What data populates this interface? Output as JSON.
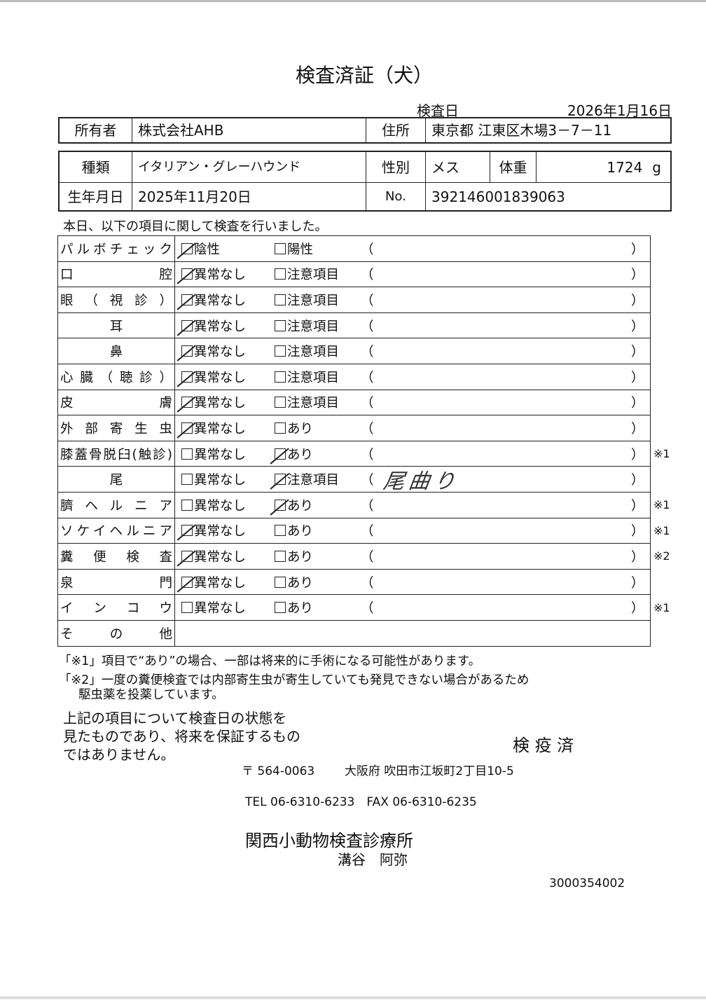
{
  "title": "検査済証（犬）",
  "inspection_date": {
    "label": "検査日",
    "value": "2026年1月16日"
  },
  "owner": {
    "label": "所有者",
    "value": "株式会社AHB"
  },
  "address": {
    "label": "住所",
    "value": "東京都 江東区木場3－7－11"
  },
  "breed": {
    "label": "種類",
    "value": "イタリアン・グレーハウンド"
  },
  "sex": {
    "label": "性別",
    "value": "メス"
  },
  "weight": {
    "label": "体重",
    "value": "1724",
    "unit": "g"
  },
  "birthdate": {
    "label": "生年月日",
    "value": "2025年11月20日"
  },
  "number": {
    "label": "No.",
    "value": "392146001839063"
  },
  "intro": "本日、以下の項目に関して検査を行いました。",
  "checklist": [
    {
      "label": "パルボチェック",
      "opt1": "陰性",
      "opt2": "陽性",
      "checked": 1,
      "note": "",
      "remark": ""
    },
    {
      "label": "口腔",
      "opt1": "異常なし",
      "opt2": "注意項目",
      "checked": 1,
      "note": "",
      "remark": ""
    },
    {
      "label": "眼（視診）",
      "opt1": "異常なし",
      "opt2": "注意項目",
      "checked": 1,
      "note": "",
      "remark": ""
    },
    {
      "label": "耳",
      "opt1": "異常なし",
      "opt2": "注意項目",
      "checked": 1,
      "note": "",
      "remark": ""
    },
    {
      "label": "鼻",
      "opt1": "異常なし",
      "opt2": "注意項目",
      "checked": 1,
      "note": "",
      "remark": ""
    },
    {
      "label": "心臓（聴診）",
      "opt1": "異常なし",
      "opt2": "注意項目",
      "checked": 1,
      "note": "",
      "remark": ""
    },
    {
      "label": "皮膚",
      "opt1": "異常なし",
      "opt2": "注意項目",
      "checked": 1,
      "note": "",
      "remark": ""
    },
    {
      "label": "外部寄生虫",
      "opt1": "異常なし",
      "opt2": "あり",
      "checked": 1,
      "note": "",
      "remark": ""
    },
    {
      "label": "膝蓋骨脱臼(触診)",
      "opt1": "異常なし",
      "opt2": "あり",
      "checked": 2,
      "note": "※1",
      "remark": ""
    },
    {
      "label": "尾",
      "opt1": "異常なし",
      "opt2": "注意項目",
      "checked": 2,
      "note": "",
      "remark": "尾曲り"
    },
    {
      "label": "臍ヘルニア",
      "opt1": "異常なし",
      "opt2": "あり",
      "checked": 2,
      "note": "※1",
      "remark": ""
    },
    {
      "label": "ソケイヘルニア",
      "opt1": "異常なし",
      "opt2": "あり",
      "checked": 1,
      "note": "※1",
      "remark": ""
    },
    {
      "label": "糞便検査",
      "opt1": "異常なし",
      "opt2": "あり",
      "checked": 1,
      "note": "※2",
      "remark": ""
    },
    {
      "label": "泉門",
      "opt1": "異常なし",
      "opt2": "あり",
      "checked": 1,
      "note": "",
      "remark": ""
    },
    {
      "label": "インコウ",
      "opt1": "異常なし",
      "opt2": "あり",
      "checked": 0,
      "note": "※1",
      "remark": ""
    },
    {
      "label": "その他",
      "opt1": "",
      "opt2": "",
      "checked": 0,
      "note": "",
      "remark": ""
    }
  ],
  "paren_open": "（",
  "paren_close": "）",
  "footnotes": [
    "「※1」項目で“あり”の場合、一部は将来的に手術になる可能性があります。",
    "「※2」一度の糞便検査では内部寄生虫が寄生していても発見できない場合があるため",
    "駆虫薬を投薬しています。"
  ],
  "disclaimer": [
    "上記の項目について検査日の状態を",
    "見たものであり、将来を保証するもの",
    "ではありません。"
  ],
  "stamp": "検 疫 済",
  "clinic": {
    "postal": "〒 564-0063",
    "address": "大阪府 吹田市江坂町2丁目10-5",
    "phone": "TEL 06-6310-6233　FAX 06-6310-6235",
    "name": "関西小動物検査診療所",
    "person": "溝谷　阿弥"
  },
  "doc_code": "3000354002"
}
